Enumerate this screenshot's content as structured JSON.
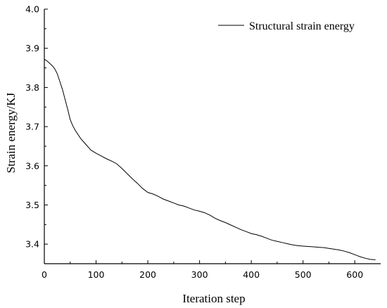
{
  "chart_data": {
    "type": "line",
    "xlabel": "Iteration step",
    "ylabel": "Strain energy/KJ",
    "xlim": [
      0,
      650
    ],
    "ylim": [
      3.35,
      4.0
    ],
    "xticks": [
      0,
      100,
      200,
      300,
      400,
      500,
      600
    ],
    "xtick_labels": [
      "0",
      "100",
      "200",
      "300",
      "400",
      "500",
      "600"
    ],
    "yticks": [
      3.4,
      3.5,
      3.6,
      3.7,
      3.8,
      3.9,
      4.0
    ],
    "ytick_labels": [
      "3.4",
      "3.5",
      "3.6",
      "3.7",
      "3.8",
      "3.9",
      "4.0"
    ],
    "legend_position": "top-right",
    "grid": false,
    "series": [
      {
        "name": "Structural strain energy",
        "color": "#000000",
        "x": [
          0,
          5,
          10,
          15,
          20,
          25,
          30,
          35,
          40,
          45,
          50,
          55,
          60,
          70,
          80,
          90,
          100,
          110,
          120,
          130,
          140,
          150,
          160,
          170,
          180,
          190,
          200,
          210,
          220,
          230,
          240,
          250,
          260,
          270,
          280,
          290,
          300,
          310,
          320,
          330,
          340,
          350,
          360,
          370,
          380,
          390,
          400,
          410,
          420,
          430,
          440,
          450,
          460,
          470,
          480,
          490,
          500,
          510,
          520,
          530,
          540,
          550,
          560,
          570,
          580,
          590,
          600,
          610,
          620,
          630,
          640
        ],
        "values": [
          3.872,
          3.868,
          3.862,
          3.856,
          3.848,
          3.835,
          3.815,
          3.795,
          3.77,
          3.745,
          3.718,
          3.702,
          3.69,
          3.67,
          3.655,
          3.64,
          3.632,
          3.625,
          3.618,
          3.612,
          3.605,
          3.593,
          3.58,
          3.567,
          3.555,
          3.542,
          3.532,
          3.528,
          3.522,
          3.515,
          3.51,
          3.505,
          3.5,
          3.497,
          3.492,
          3.487,
          3.484,
          3.48,
          3.474,
          3.466,
          3.46,
          3.455,
          3.449,
          3.443,
          3.437,
          3.432,
          3.427,
          3.424,
          3.42,
          3.415,
          3.41,
          3.407,
          3.404,
          3.401,
          3.398,
          3.396,
          3.395,
          3.394,
          3.393,
          3.392,
          3.391,
          3.389,
          3.387,
          3.385,
          3.382,
          3.378,
          3.373,
          3.368,
          3.364,
          3.361,
          3.36
        ]
      }
    ]
  }
}
